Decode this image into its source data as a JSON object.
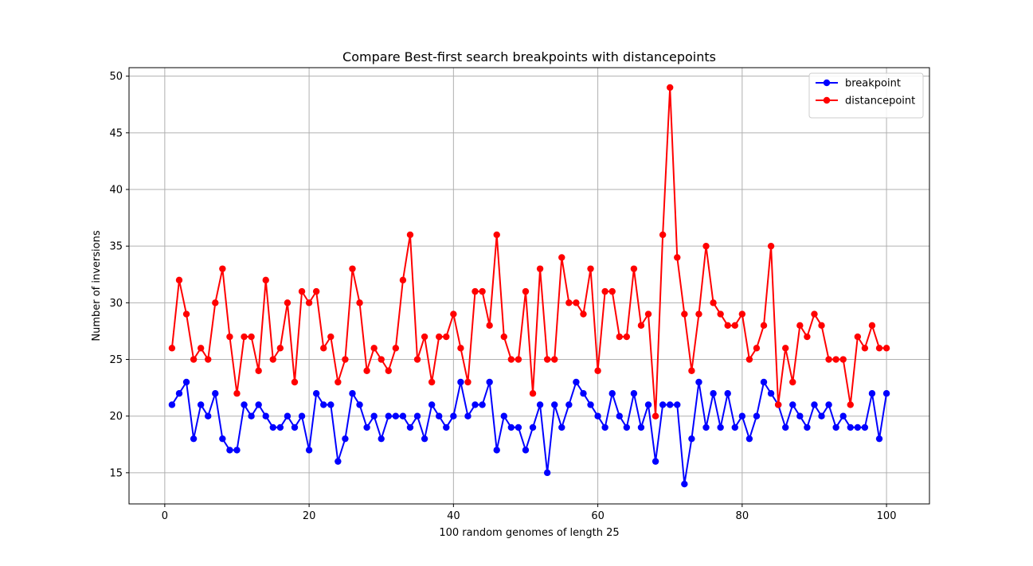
{
  "chart_data": {
    "type": "line",
    "title": "Compare Best-first search breakpoints with distancepoints",
    "xlabel": "100 random genomes of length 25",
    "ylabel": "Number of inversions",
    "xlim": [
      -4.95,
      105.95
    ],
    "ylim": [
      12.25,
      50.75
    ],
    "xticks": [
      0,
      20,
      40,
      60,
      80,
      100
    ],
    "yticks": [
      15,
      20,
      25,
      30,
      35,
      40,
      45,
      50
    ],
    "grid": true,
    "legend_position": "top-right",
    "x": [
      1,
      2,
      3,
      4,
      5,
      6,
      7,
      8,
      9,
      10,
      11,
      12,
      13,
      14,
      15,
      16,
      17,
      18,
      19,
      20,
      21,
      22,
      23,
      24,
      25,
      26,
      27,
      28,
      29,
      30,
      31,
      32,
      33,
      34,
      35,
      36,
      37,
      38,
      39,
      40,
      41,
      42,
      43,
      44,
      45,
      46,
      47,
      48,
      49,
      50,
      51,
      52,
      53,
      54,
      55,
      56,
      57,
      58,
      59,
      60,
      61,
      62,
      63,
      64,
      65,
      66,
      67,
      68,
      69,
      70,
      71,
      72,
      73,
      74,
      75,
      76,
      77,
      78,
      79,
      80,
      81,
      82,
      83,
      84,
      85,
      86,
      87,
      88,
      89,
      90,
      91,
      92,
      93,
      94,
      95,
      96,
      97,
      98,
      99,
      100
    ],
    "series": [
      {
        "name": "breakpoint",
        "color": "#0000ff",
        "values": [
          21,
          22,
          23,
          18,
          21,
          20,
          22,
          18,
          17,
          17,
          21,
          20,
          21,
          20,
          19,
          19,
          20,
          19,
          20,
          17,
          22,
          21,
          21,
          16,
          18,
          22,
          21,
          19,
          20,
          18,
          20,
          20,
          20,
          19,
          20,
          18,
          21,
          20,
          19,
          20,
          23,
          20,
          21,
          21,
          23,
          17,
          20,
          19,
          19,
          17,
          19,
          21,
          15,
          21,
          19,
          21,
          23,
          22,
          21,
          20,
          19,
          22,
          20,
          19,
          22,
          19,
          21,
          16,
          21,
          21,
          21,
          14,
          18,
          23,
          19,
          22,
          19,
          22,
          19,
          20,
          18,
          20,
          23,
          22,
          21,
          19,
          21,
          20,
          19,
          21,
          20,
          21,
          19,
          20,
          19,
          19,
          19,
          22,
          18,
          22
        ]
      },
      {
        "name": "distancepoint",
        "color": "#ff0000",
        "values": [
          26,
          32,
          29,
          25,
          26,
          25,
          30,
          33,
          27,
          22,
          27,
          27,
          24,
          32,
          25,
          26,
          30,
          23,
          31,
          30,
          31,
          26,
          27,
          23,
          25,
          33,
          30,
          24,
          26,
          25,
          24,
          26,
          32,
          36,
          25,
          27,
          23,
          27,
          27,
          29,
          26,
          23,
          31,
          31,
          28,
          36,
          27,
          25,
          25,
          31,
          22,
          33,
          25,
          25,
          34,
          30,
          30,
          29,
          33,
          24,
          31,
          31,
          27,
          27,
          33,
          28,
          29,
          20,
          36,
          49,
          34,
          29,
          24,
          29,
          35,
          30,
          29,
          28,
          28,
          29,
          25,
          26,
          28,
          35,
          21,
          26,
          23,
          28,
          27,
          29,
          28,
          25,
          25,
          25,
          21,
          27,
          26,
          28,
          26,
          26
        ]
      }
    ]
  }
}
